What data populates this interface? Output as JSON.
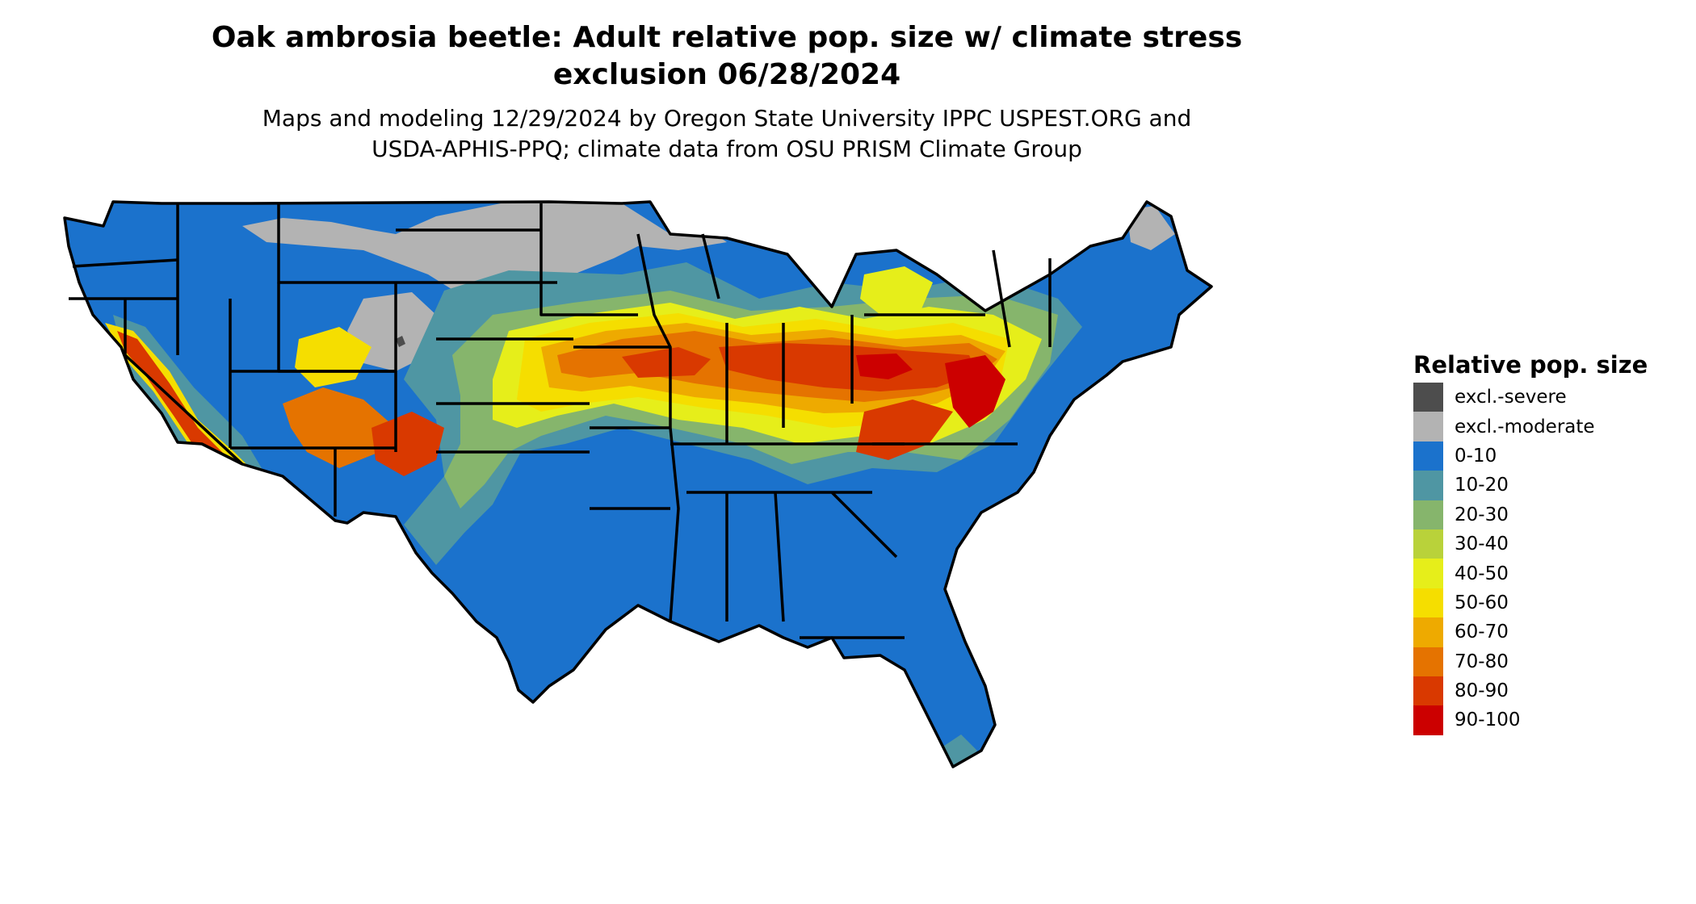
{
  "title_line1": "Oak ambrosia beetle: Adult relative pop. size w/ climate stress",
  "title_line2": "exclusion 06/28/2024",
  "subtitle_line1": "Maps and modeling 12/29/2024 by Oregon State University IPPC USPEST.ORG and",
  "subtitle_line2": "USDA-APHIS-PPQ; climate data from OSU PRISM Climate Group",
  "legend": {
    "title": "Relative pop. size",
    "items": [
      {
        "label": "excl.-severe",
        "color": "#4d4d4d"
      },
      {
        "label": "excl.-moderate",
        "color": "#b3b3b3"
      },
      {
        "label": "0-10",
        "color": "#1b72cc"
      },
      {
        "label": "10-20",
        "color": "#4f96a3"
      },
      {
        "label": "20-30",
        "color": "#86b56c"
      },
      {
        "label": "30-40",
        "color": "#b9d23a"
      },
      {
        "label": "40-50",
        "color": "#e6ee1a"
      },
      {
        "label": "50-60",
        "color": "#f5de00"
      },
      {
        "label": "60-70",
        "color": "#eeaa00"
      },
      {
        "label": "70-80",
        "color": "#e57300"
      },
      {
        "label": "80-90",
        "color": "#d93900"
      },
      {
        "label": "90-100",
        "color": "#cc0000"
      }
    ]
  }
}
